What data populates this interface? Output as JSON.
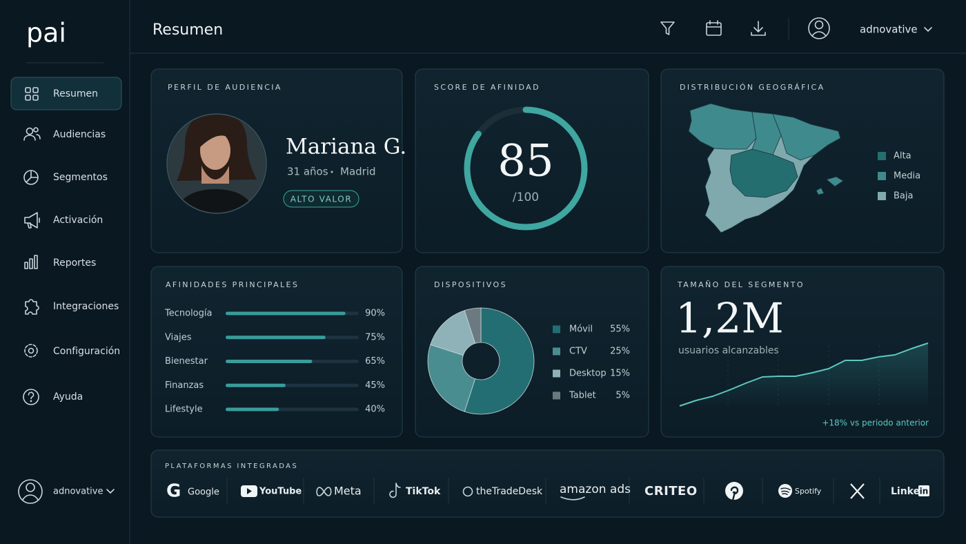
{
  "sidebar": {
    "logo": "pai",
    "nav": [
      "Resumen",
      "Audiencias",
      "Segmentos",
      "Activación",
      "Reportes",
      "Integraciones",
      "Configuración",
      "Ayuda"
    ],
    "user": "adnovative"
  },
  "header": {
    "title": "Resumen",
    "user": "adnovative"
  },
  "profile": {
    "title": "PERFIL DE AUDIENCIA",
    "name": "Mariana G.",
    "age": "31 años",
    "city": "Madrid",
    "badge": "ALTO VALOR"
  },
  "score": {
    "title": "SCORE DE AFINIDAD",
    "value": 85,
    "max": {
      "value": 100,
      "label": "/100"
    },
    "color": "#3fa6a0"
  },
  "geo": {
    "title": "DISTRIBUCIÓN GEOGRÁFICA",
    "legend": [
      {
        "label": "Alta",
        "color": "#256e70"
      },
      {
        "label": "Media",
        "color": "#3f8a8c"
      },
      {
        "label": "Baja",
        "color": "#7fa9ad"
      }
    ]
  },
  "affinities": {
    "title": "AFINIDADES PRINCIPALES",
    "type": "bar",
    "categories": [
      "Tecnología",
      "Viajes",
      "Bienestar",
      "Finanzas",
      "Lifestyle"
    ],
    "values": [
      90,
      75,
      65,
      45,
      40
    ],
    "value_labels": [
      "90%",
      "75%",
      "65%",
      "45%",
      "40%"
    ],
    "xlim": [
      0,
      100
    ],
    "color": "#3a9c9b"
  },
  "devices": {
    "title": "DISPOSITIVOS",
    "type": "pie",
    "categories": [
      "Móvil",
      "CTV",
      "Desktop",
      "Tablet"
    ],
    "values": [
      55,
      25,
      15,
      5
    ],
    "value_labels": [
      "55%",
      "25%",
      "15%",
      "5%"
    ],
    "colors": [
      "#236e72",
      "#4a8d90",
      "#8fb1b8",
      "#6b7a81"
    ]
  },
  "segment": {
    "title": "TAMAÑO DEL SEGMENTO",
    "headline": "1,2M",
    "subtitle": "usuarios alcanzables",
    "type": "line",
    "trend": [
      2,
      10,
      16,
      25,
      35,
      44,
      45,
      45,
      50,
      56,
      68,
      68,
      73,
      76,
      85,
      93
    ],
    "color": "#5ec9bf",
    "footer": "+18% vs periodo anterior"
  },
  "platforms": {
    "title": "PLATAFORMAS INTEGRADAS",
    "logos": [
      "Google",
      "YouTube",
      "Meta",
      "TikTok",
      "theTradeDesk",
      "amazon ads",
      "CRITEO",
      "Spotify",
      "Linked",
      "in"
    ]
  }
}
